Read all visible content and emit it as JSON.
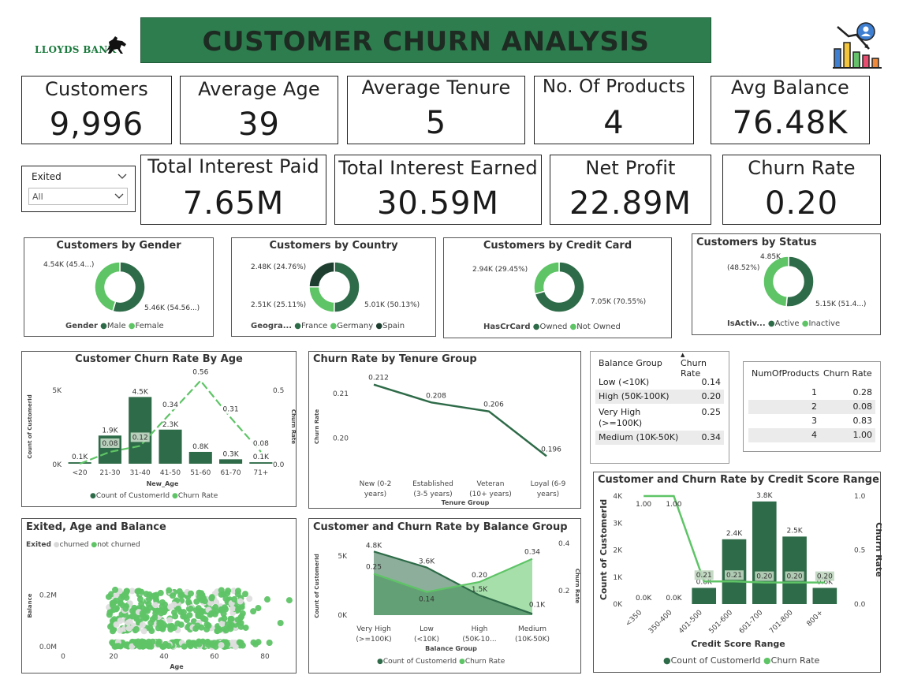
{
  "header": {
    "bank_name": "LLOYDS BANK",
    "title": "CUSTOMER CHURN ANALYSIS",
    "logo_icon": "horse-icon",
    "chart_icon": "churn-chart-icon",
    "brand_color": "#2e7d4f"
  },
  "kpis": {
    "customers": {
      "label": "Customers",
      "value": "9,996"
    },
    "average_age": {
      "label": "Average Age",
      "value": "39"
    },
    "average_tenure": {
      "label": "Average Tenure",
      "value": "5"
    },
    "no_of_products": {
      "label": "No. Of Products",
      "value": "4"
    },
    "avg_balance": {
      "label": "Avg Balance",
      "value": "76.48K"
    },
    "total_interest_paid": {
      "label": "Total Interest Paid",
      "value": "7.65M"
    },
    "total_interest_earned": {
      "label": "Total Interest Earned",
      "value": "30.59M"
    },
    "net_profit": {
      "label": "Net Profit",
      "value": "22.89M"
    },
    "churn_rate": {
      "label": "Churn Rate",
      "value": "0.20"
    }
  },
  "filter": {
    "label": "Exited",
    "value": "All"
  },
  "colors": {
    "dark": "#2e6b48",
    "light": "#5ec466",
    "darkest": "#1e3f2f",
    "grey": "#c8c8c8"
  },
  "donuts": [
    {
      "title": "Customers by Gender",
      "legend_title": "Gender",
      "legend": [
        "Male",
        "Female"
      ],
      "label_a": "4.54K (45.4...)",
      "label_b": "5.46K (54.56...)",
      "chart_data": {
        "type": "pie",
        "categories": [
          "Male",
          "Female"
        ],
        "values": [
          5460,
          4540
        ]
      }
    },
    {
      "title": "Customers by Country",
      "legend_title": "Geogra...",
      "legend": [
        "France",
        "Germany",
        "Spain"
      ],
      "label_a": "2.48K (24.76%)",
      "label_b": "2.51K (25.11%)",
      "label_c": "5.01K (50.13%)",
      "chart_data": {
        "type": "pie",
        "categories": [
          "France",
          "Germany",
          "Spain"
        ],
        "values": [
          5010,
          2510,
          2480
        ]
      }
    },
    {
      "title": "Customers by Credit Card",
      "legend_title": "HasCrCard",
      "legend": [
        "Owned",
        "Not Owned"
      ],
      "label_a": "2.94K (29.45%)",
      "label_b": "7.05K (70.55%)",
      "chart_data": {
        "type": "pie",
        "categories": [
          "Owned",
          "Not Owned"
        ],
        "values": [
          7050,
          2940
        ]
      }
    },
    {
      "title": "Customers by Status",
      "legend_title": "IsActiv...",
      "legend": [
        "Active",
        "Inactive"
      ],
      "label_a": "4.85K",
      "label_a2": "(48.52%)",
      "label_b": "5.15K (51.4...)",
      "chart_data": {
        "type": "pie",
        "categories": [
          "Active",
          "Inactive"
        ],
        "values": [
          5150,
          4850
        ]
      }
    }
  ],
  "age_chart": {
    "title": "Customer Churn Rate By Age",
    "ylabel": "Count of CustomerId",
    "y2label": "Churn Rate",
    "xlabel": "New_Age",
    "yticks": [
      "5K",
      "0K"
    ],
    "y2ticks": [
      "0.5",
      "0.0"
    ],
    "legend": [
      "Count of CustomerId",
      "Churn Rate"
    ],
    "chart_data": {
      "type": "bar",
      "categories": [
        "<20",
        "21-30",
        "31-40",
        "41-50",
        "51-60",
        "61-70",
        "71+"
      ],
      "series": [
        {
          "name": "Count of CustomerId",
          "values": [
            100,
            1900,
            4500,
            2300,
            800,
            300,
            100
          ],
          "labels": [
            "0.1K",
            "1.9K",
            "4.5K",
            "2.3K",
            "0.8K",
            "0.3K",
            "0.1K"
          ]
        },
        {
          "name": "Churn Rate",
          "values": [
            0.0,
            0.08,
            0.12,
            0.34,
            0.56,
            0.31,
            0.08
          ],
          "labels": [
            "",
            "0.08",
            "0.12",
            "0.34",
            "0.56",
            "0.31",
            "0.08"
          ]
        }
      ],
      "ylim": [
        0,
        5000
      ],
      "y2lim": [
        0,
        0.5
      ]
    }
  },
  "tenure_chart": {
    "title": "Churn Rate by Tenure Group",
    "ylabel": "Churn Rate",
    "xlabel": "Tenure Group",
    "yticks": [
      "0.21",
      "0.20"
    ],
    "xlabels": [
      [
        "New (0-2",
        "years)"
      ],
      [
        "Established",
        "(3-5 years)"
      ],
      [
        "Veteran",
        "(10+ years)"
      ],
      [
        "Loyal (6-9",
        "years)"
      ]
    ],
    "chart_data": {
      "type": "line",
      "categories": [
        "New (0-2 years)",
        "Established (3-5 years)",
        "Veteran (10+ years)",
        "Loyal (6-9 years)"
      ],
      "values": [
        0.212,
        0.208,
        0.206,
        0.196
      ],
      "labels": [
        "0.212",
        "0.208",
        "0.206",
        "0.196"
      ],
      "ylim": [
        0.195,
        0.213
      ]
    }
  },
  "balance_table": {
    "headers": [
      "Balance Group",
      "Churn Rate"
    ],
    "rows": [
      {
        "group": "Low (<10K)",
        "rate": "0.14"
      },
      {
        "group": "High (50K-100K)",
        "rate": "0.20"
      },
      {
        "group": "Very High",
        "group2": "(>=100K)",
        "rate": "0.25"
      },
      {
        "group": "Medium (10K-50K)",
        "rate": "0.34"
      }
    ]
  },
  "products_table": {
    "headers": [
      "NumOfProducts",
      "Churn Rate"
    ],
    "rows": [
      {
        "n": "1",
        "rate": "0.28"
      },
      {
        "n": "2",
        "rate": "0.08"
      },
      {
        "n": "3",
        "rate": "0.83"
      },
      {
        "n": "4",
        "rate": "1.00"
      }
    ]
  },
  "scatter_chart": {
    "title": "Exited, Age and Balance",
    "legend_title": "Exited",
    "legend": [
      "churned",
      "not churned"
    ],
    "ylabel": "Balance",
    "xlabel": "Age",
    "yticks": [
      "0.2M",
      "0.0M"
    ],
    "xticks": [
      "0",
      "20",
      "40",
      "60",
      "80"
    ],
    "chart_data": {
      "type": "scatter",
      "xlim": [
        0,
        90
      ],
      "ylim": [
        0,
        0.25
      ],
      "x_range_points": [
        18,
        92
      ],
      "y_range_points": [
        0,
        0.25
      ]
    }
  },
  "balance_chart": {
    "title": "Customer and Churn Rate by Balance Group",
    "ylabel": "Count of CustomerId",
    "y2label": "Churn Rate",
    "xlabel": "Balance Group",
    "yticks": [
      "5K",
      "0K"
    ],
    "y2ticks": [
      "0.4",
      "0.2"
    ],
    "xlabels": [
      [
        "Very High",
        "(>=100K)"
      ],
      [
        "Low",
        "(<10K)"
      ],
      [
        "High",
        "(50K-10..."
      ],
      [
        "Medium",
        "(10K-50K)"
      ]
    ],
    "legend": [
      "Count of CustomerId",
      "Churn Rate"
    ],
    "chart_data": {
      "type": "area",
      "categories": [
        "Very High (>=100K)",
        "Low (<10K)",
        "High (50K-100K)",
        "Medium (10K-50K)"
      ],
      "series": [
        {
          "name": "Count of CustomerId",
          "values": [
            4800,
            3600,
            1500,
            100
          ],
          "labels": [
            "4.8K",
            "3.6K",
            "1.5K",
            "0.1K"
          ]
        },
        {
          "name": "Churn Rate",
          "values": [
            0.25,
            0.14,
            0.2,
            0.34
          ],
          "labels": [
            "0.25",
            "0.14",
            "0.20",
            "0.34"
          ]
        }
      ],
      "ylim": [
        0,
        5000
      ],
      "y2lim": [
        0,
        0.4
      ]
    }
  },
  "credit_chart": {
    "title": "Customer and Churn Rate by Credit Score Range",
    "ylabel": "Count of CustomerId",
    "y2label": "Churn Rate",
    "xlabel": "Credit Score Range",
    "yticks": [
      "4K",
      "3K",
      "2K",
      "1K",
      "0K"
    ],
    "y2ticks": [
      "1.0",
      "0.5",
      "0.0"
    ],
    "legend": [
      "Count of CustomerId",
      "Churn Rate"
    ],
    "chart_data": {
      "type": "bar",
      "categories": [
        "<350",
        "350-400",
        "401-500",
        "501-600",
        "601-700",
        "701-800",
        "800+"
      ],
      "series": [
        {
          "name": "Count of CustomerId",
          "values": [
            0,
            0,
            600,
            2400,
            3800,
            2500,
            600
          ],
          "labels": [
            "0.0K",
            "0.0K",
            "0.6K",
            "2.4K",
            "3.8K",
            "2.5K",
            "0.6K"
          ]
        },
        {
          "name": "Churn Rate",
          "values": [
            1.0,
            1.0,
            0.21,
            0.21,
            0.2,
            0.2,
            0.2
          ],
          "labels": [
            "1.00",
            "1.00",
            "0.21",
            "0.21",
            "0.20",
            "0.20",
            "0.20"
          ]
        }
      ],
      "ylim": [
        0,
        4000
      ],
      "y2lim": [
        0,
        1.0
      ]
    }
  }
}
